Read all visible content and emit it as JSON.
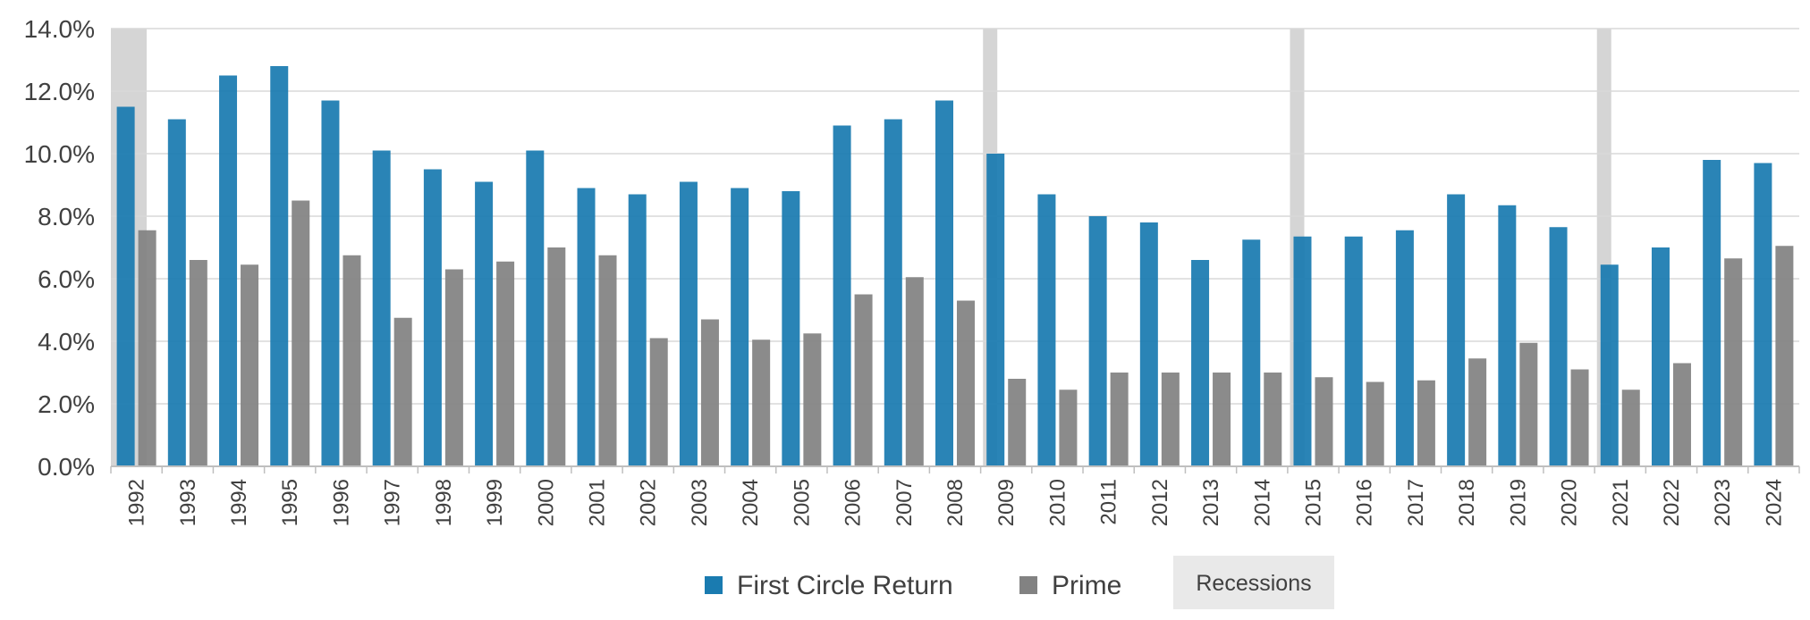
{
  "chart_data": {
    "type": "bar",
    "title": "",
    "xlabel": "",
    "ylabel": "",
    "ylim": [
      0,
      14
    ],
    "y_tick_format": "percent_one_decimal",
    "y_ticks": [
      "0.0%",
      "2.0%",
      "4.0%",
      "6.0%",
      "8.0%",
      "10.0%",
      "12.0%",
      "14.0%"
    ],
    "grid": true,
    "legend_position": "bottom",
    "categories": [
      "1992",
      "1993",
      "1994",
      "1995",
      "1996",
      "1997",
      "1998",
      "1999",
      "2000",
      "2001",
      "2002",
      "2003",
      "2004",
      "2005",
      "2006",
      "2007",
      "2008",
      "2009",
      "2010",
      "2011",
      "2012",
      "2013",
      "2014",
      "2015",
      "2016",
      "2017",
      "2018",
      "2019",
      "2020",
      "2021",
      "2022",
      "2023",
      "2024"
    ],
    "series": [
      {
        "name": "First Circle Return",
        "color": "#1a7bb0",
        "values": [
          11.5,
          11.1,
          12.5,
          12.8,
          11.7,
          10.1,
          9.5,
          9.1,
          10.1,
          8.9,
          8.7,
          9.1,
          8.9,
          8.8,
          10.9,
          11.1,
          11.7,
          10.0,
          8.7,
          8.0,
          7.8,
          6.6,
          7.25,
          7.35,
          7.35,
          7.55,
          8.7,
          8.35,
          7.65,
          6.45,
          7.0,
          9.8,
          9.7
        ]
      },
      {
        "name": "Prime",
        "color": "#828282",
        "values": [
          7.55,
          6.6,
          6.45,
          8.5,
          6.75,
          4.75,
          6.3,
          6.55,
          7.0,
          6.75,
          4.1,
          4.7,
          4.05,
          4.25,
          5.5,
          6.05,
          5.3,
          2.8,
          2.45,
          3.0,
          3.0,
          3.0,
          3.0,
          2.85,
          2.7,
          2.75,
          3.45,
          3.95,
          3.1,
          2.45,
          3.3,
          6.65,
          7.05
        ]
      }
    ],
    "recessions": {
      "name": "Recessions",
      "color": "#d3d3d3",
      "categories": [
        "1992",
        "2009",
        "2015",
        "2021"
      ]
    }
  }
}
